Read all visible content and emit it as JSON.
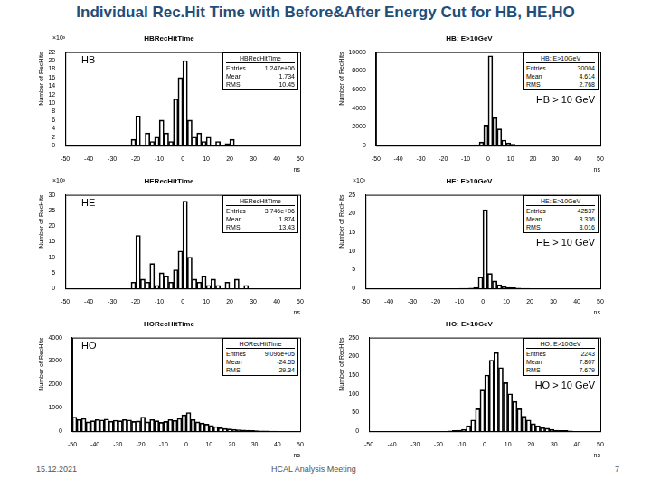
{
  "header": {
    "title": "Individual Rec.Hit Time with Before&After Energy Cut for HB, HE,HO"
  },
  "footer": {
    "date": "15.12.2021",
    "event": "HCAL Analysis Meeting",
    "page": "7"
  },
  "chart_data": [
    {
      "type": "histogram",
      "title": "HBRecHitTime",
      "label": "HB",
      "x_label": "ns",
      "y_label": "Number of RecHits",
      "annotations": [
        "×10³"
      ],
      "stats": {
        "name": "HBRecHitTime",
        "rows": [
          [
            "Entries",
            "1.247e+06"
          ],
          [
            "Mean",
            "1.734"
          ],
          [
            "RMS",
            "10.45"
          ]
        ]
      },
      "color": "#000000",
      "bins": [
        -50,
        -48,
        -46,
        -44,
        -42,
        -40,
        -38,
        -36,
        -34,
        -32,
        -30,
        -28,
        -26,
        -24,
        -22,
        -20,
        -18,
        -16,
        -14,
        -12,
        -10,
        -8,
        -6,
        -4,
        -2,
        0,
        2,
        4,
        6,
        8,
        10,
        12,
        14,
        16,
        18,
        20,
        22,
        24,
        26,
        28,
        30,
        32,
        34,
        36,
        38,
        40,
        42,
        44,
        46,
        48,
        50
      ],
      "values": [
        0,
        0,
        0,
        0,
        0,
        0,
        0,
        0,
        0,
        0,
        0,
        0,
        0,
        0,
        1.5,
        7,
        0,
        3,
        1,
        2,
        6,
        3,
        1,
        11,
        16,
        20,
        6,
        2,
        3,
        1,
        2,
        0,
        1,
        0,
        0.5,
        1.5,
        0,
        0,
        0,
        0,
        0,
        0,
        0,
        0,
        0,
        0,
        0,
        0,
        0,
        0
      ],
      "xlim": [
        -50,
        50
      ],
      "xticks": [
        -50,
        -40,
        -30,
        -20,
        -10,
        0,
        10,
        20,
        30,
        40,
        50
      ],
      "ylim": [
        0,
        22
      ],
      "yticks": [
        0,
        2,
        4,
        6,
        8,
        10,
        12,
        14,
        16,
        18,
        20,
        22
      ]
    },
    {
      "type": "histogram",
      "title": "HB: E>10GeV",
      "label": "HB > 10 GeV",
      "x_label": "ns",
      "y_label": "Number of RecHits",
      "annotations": [],
      "stats": {
        "name": "HB: E>10GeV",
        "rows": [
          [
            "Entries",
            "30004"
          ],
          [
            "Mean",
            "4.614"
          ],
          [
            "RMS",
            "2.768"
          ]
        ]
      },
      "color": "#000000",
      "bins": [
        -50,
        -48,
        -46,
        -44,
        -42,
        -40,
        -38,
        -36,
        -34,
        -32,
        -30,
        -28,
        -26,
        -24,
        -22,
        -20,
        -18,
        -16,
        -14,
        -12,
        -10,
        -8,
        -6,
        -4,
        -2,
        0,
        2,
        4,
        6,
        8,
        10,
        12,
        14,
        16,
        18,
        20,
        22,
        24,
        26,
        28,
        30,
        32,
        34,
        36,
        38,
        40,
        42,
        44,
        46,
        48,
        50
      ],
      "values": [
        0,
        0,
        0,
        0,
        0,
        0,
        0,
        0,
        0,
        0,
        0,
        0,
        0,
        0,
        0,
        0,
        0,
        0,
        0,
        20,
        40,
        60,
        100,
        400,
        2200,
        9600,
        3000,
        1800,
        600,
        300,
        150,
        80,
        50,
        30,
        20,
        10,
        5,
        0,
        0,
        0,
        0,
        0,
        0,
        0,
        0,
        0,
        0,
        0,
        0,
        0
      ],
      "xlim": [
        -50,
        50
      ],
      "xticks": [
        -50,
        -40,
        -30,
        -20,
        -10,
        0,
        10,
        20,
        30,
        40,
        50
      ],
      "ylim": [
        0,
        10000
      ],
      "yticks": [
        0,
        2000,
        4000,
        6000,
        8000,
        10000
      ]
    },
    {
      "type": "histogram",
      "title": "HERecHitTime",
      "label": "HE",
      "x_label": "ns",
      "y_label": "Number of RecHits",
      "annotations": [
        "×10³"
      ],
      "stats": {
        "name": "HERecHitTime",
        "rows": [
          [
            "Entries",
            "3.746e+06"
          ],
          [
            "Mean",
            "1.874"
          ],
          [
            "RMS",
            "13.43"
          ]
        ]
      },
      "color": "#000000",
      "bins": [
        -50,
        -48,
        -46,
        -44,
        -42,
        -40,
        -38,
        -36,
        -34,
        -32,
        -30,
        -28,
        -26,
        -24,
        -22,
        -20,
        -18,
        -16,
        -14,
        -12,
        -10,
        -8,
        -6,
        -4,
        -2,
        0,
        2,
        4,
        6,
        8,
        10,
        12,
        14,
        16,
        18,
        20,
        22,
        24,
        26,
        28,
        30,
        32,
        34,
        36,
        38,
        40,
        42,
        44,
        46,
        48,
        50
      ],
      "values": [
        0,
        0,
        0,
        0,
        0,
        0,
        0,
        0,
        0,
        0,
        0,
        0,
        0,
        0,
        2,
        17,
        3,
        2,
        8,
        1,
        5,
        4,
        2,
        6,
        12,
        28,
        10,
        3,
        2,
        4,
        1,
        3,
        1,
        0,
        2,
        0,
        3,
        0,
        1,
        0,
        0,
        0,
        0,
        0,
        0,
        0,
        0,
        0,
        0,
        0
      ],
      "xlim": [
        -50,
        50
      ],
      "xticks": [
        -50,
        -40,
        -30,
        -20,
        -10,
        0,
        10,
        20,
        30,
        40,
        50
      ],
      "ylim": [
        0,
        30
      ],
      "yticks": [
        0,
        5,
        10,
        15,
        20,
        25,
        30
      ]
    },
    {
      "type": "histogram",
      "title": "HE: E>10GeV",
      "label": "HE > 10 GeV",
      "x_label": "ns",
      "y_label": "Number of RecHits",
      "annotations": [
        "×10³"
      ],
      "stats": {
        "name": "HE: E>10GeV",
        "rows": [
          [
            "Entries",
            "42537"
          ],
          [
            "Mean",
            "3.336"
          ],
          [
            "RMS",
            "3.016"
          ]
        ]
      },
      "color": "#000000",
      "bins": [
        -50,
        -48,
        -46,
        -44,
        -42,
        -40,
        -38,
        -36,
        -34,
        -32,
        -30,
        -28,
        -26,
        -24,
        -22,
        -20,
        -18,
        -16,
        -14,
        -12,
        -10,
        -8,
        -6,
        -4,
        -2,
        0,
        2,
        4,
        6,
        8,
        10,
        12,
        14,
        16,
        18,
        20,
        22,
        24,
        26,
        28,
        30,
        32,
        34,
        36,
        38,
        40,
        42,
        44,
        46,
        48,
        50
      ],
      "values": [
        0,
        0,
        0,
        0,
        0,
        0,
        0,
        0,
        0,
        0,
        0,
        0,
        0,
        0,
        0,
        0,
        0,
        0,
        0,
        0,
        0.02,
        0.05,
        0.1,
        0.3,
        3,
        21,
        4,
        2,
        1,
        0.5,
        0.3,
        0.2,
        0.1,
        0.05,
        0.02,
        0,
        0,
        0,
        0,
        0,
        0,
        0,
        0,
        0,
        0,
        0,
        0,
        0,
        0,
        0
      ],
      "xlim": [
        -50,
        50
      ],
      "xticks": [
        -50,
        -40,
        -30,
        -20,
        -10,
        0,
        10,
        20,
        30,
        40,
        50
      ],
      "ylim": [
        0,
        25
      ],
      "yticks": [
        0,
        5,
        10,
        15,
        20,
        25
      ]
    },
    {
      "type": "histogram",
      "title": "HORecHitTime",
      "label": "HO",
      "x_label": "ns",
      "y_label": "Number of RecHits",
      "annotations": [],
      "stats": {
        "name": "HORecHitTime",
        "rows": [
          [
            "Entries",
            "9.096e+05"
          ],
          [
            "Mean",
            "-24.55"
          ],
          [
            "RMS",
            "29.34"
          ]
        ]
      },
      "color": "#000000",
      "bins": [
        -50,
        -48,
        -46,
        -44,
        -42,
        -40,
        -38,
        -36,
        -34,
        -32,
        -30,
        -28,
        -26,
        -24,
        -22,
        -20,
        -18,
        -16,
        -14,
        -12,
        -10,
        -8,
        -6,
        -4,
        -2,
        0,
        2,
        4,
        6,
        8,
        10,
        12,
        14,
        16,
        18,
        20,
        22,
        24,
        26,
        28,
        30,
        32,
        34,
        36,
        38,
        40,
        42,
        44,
        46,
        48,
        50
      ],
      "values": [
        600,
        500,
        550,
        400,
        450,
        500,
        480,
        520,
        430,
        470,
        450,
        500,
        480,
        420,
        440,
        600,
        400,
        500,
        450,
        380,
        420,
        500,
        460,
        550,
        700,
        800,
        500,
        400,
        350,
        300,
        250,
        200,
        150,
        120,
        100,
        80,
        60,
        50,
        40,
        30,
        20,
        15,
        10,
        5,
        5,
        0,
        0,
        0,
        0,
        0
      ],
      "xlim": [
        -50,
        50
      ],
      "xticks": [
        -50,
        -40,
        -30,
        -20,
        -10,
        0,
        10,
        20,
        30,
        40,
        50
      ],
      "ylim": [
        0,
        4000
      ],
      "yticks": [
        0,
        1000,
        2000,
        3000,
        4000
      ]
    },
    {
      "type": "histogram",
      "title": "HO: E>10GeV",
      "label": "HO > 10 GeV",
      "x_label": "ns",
      "y_label": "Number of RecHits",
      "annotations": [],
      "stats": {
        "name": "HO: E>10GeV",
        "rows": [
          [
            "Entries",
            "2243"
          ],
          [
            "Mean",
            "7.807"
          ],
          [
            "RMS",
            "7.679"
          ]
        ]
      },
      "color": "#000000",
      "bins": [
        -50,
        -48,
        -46,
        -44,
        -42,
        -40,
        -38,
        -36,
        -34,
        -32,
        -30,
        -28,
        -26,
        -24,
        -22,
        -20,
        -18,
        -16,
        -14,
        -12,
        -10,
        -8,
        -6,
        -4,
        -2,
        0,
        2,
        4,
        6,
        8,
        10,
        12,
        14,
        16,
        18,
        20,
        22,
        24,
        26,
        28,
        30,
        32,
        34,
        36,
        38,
        40,
        42,
        44,
        46,
        48,
        50
      ],
      "values": [
        0,
        0,
        0,
        0,
        0,
        0,
        0,
        0,
        0,
        0,
        0,
        0,
        0,
        0,
        0,
        0,
        0,
        1,
        2,
        3,
        5,
        15,
        30,
        60,
        110,
        150,
        190,
        210,
        170,
        130,
        100,
        80,
        60,
        40,
        30,
        20,
        15,
        10,
        8,
        5,
        3,
        2,
        2,
        1,
        0,
        0,
        0,
        0,
        0,
        0
      ],
      "xlim": [
        -50,
        50
      ],
      "xticks": [
        -50,
        -40,
        -30,
        -20,
        -10,
        0,
        10,
        20,
        30,
        40,
        50
      ],
      "ylim": [
        0,
        250
      ],
      "yticks": [
        0,
        50,
        100,
        150,
        200,
        250
      ]
    }
  ]
}
